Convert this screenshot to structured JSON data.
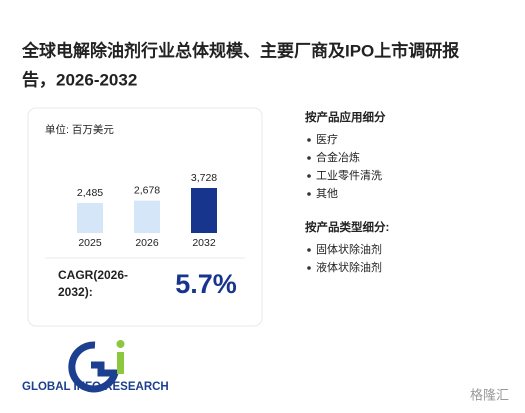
{
  "title": "全球电解除油剂行业总体规模、主要厂商及IPO上市调研报告，2026-2032",
  "chart_data": {
    "type": "bar",
    "unit": "单位: 百万美元",
    "categories": [
      "2025",
      "2026",
      "2032"
    ],
    "values": [
      2485,
      2678,
      3728
    ],
    "value_labels": [
      "2,485",
      "2,678",
      "3,728"
    ],
    "colors": [
      "#d5e6f8",
      "#d5e6f8",
      "#17358c"
    ]
  },
  "cagr": {
    "label_lines": [
      "CAGR(2026-",
      "2032):"
    ],
    "value": "5.7%"
  },
  "segments": [
    {
      "heading": "按产品应用细分",
      "items": [
        "医疗",
        "合金冶炼",
        "工业零件清洗",
        "其他"
      ]
    },
    {
      "heading": "按产品类型细分:",
      "items": [
        "固体状除油剂",
        "液体状除油剂"
      ]
    }
  ],
  "logo": {
    "brand": "GLOBAL INFO RESEARCH",
    "mark": "Gi"
  },
  "watermark_corner": "格隆汇"
}
